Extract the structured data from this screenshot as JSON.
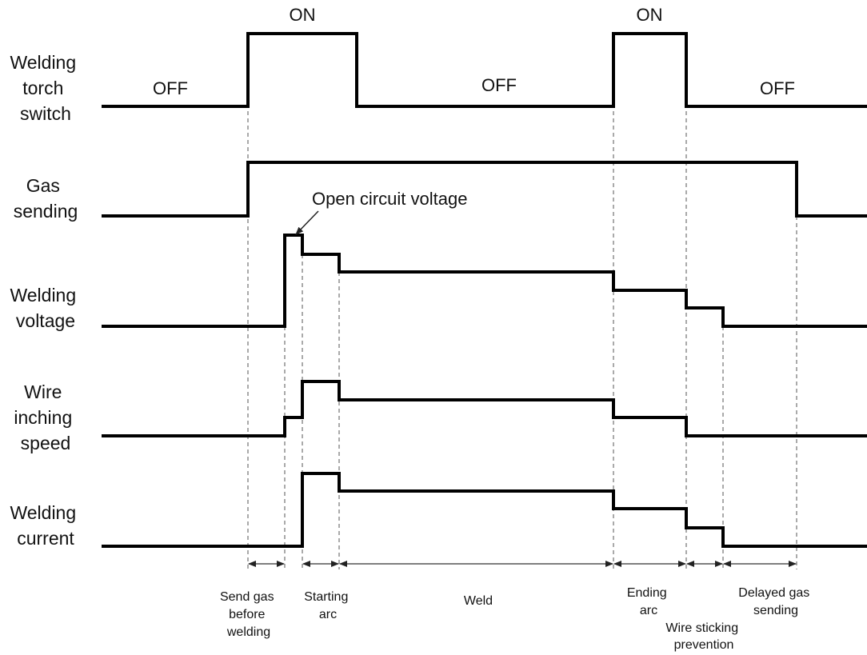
{
  "rows": [
    {
      "id": "torch",
      "label_lines": [
        "Welding",
        "torch",
        "switch"
      ]
    },
    {
      "id": "gas",
      "label_lines": [
        "Gas",
        "sending"
      ]
    },
    {
      "id": "voltage",
      "label_lines": [
        "Welding",
        "voltage"
      ]
    },
    {
      "id": "wire",
      "label_lines": [
        "Wire",
        "inching",
        "speed"
      ]
    },
    {
      "id": "current",
      "label_lines": [
        "Welding",
        "current"
      ]
    }
  ],
  "states": {
    "off_1": "OFF",
    "on_1": "ON",
    "off_2": "OFF",
    "on_2": "ON",
    "off_3": "OFF"
  },
  "annotation": "Open circuit voltage",
  "phases": [
    {
      "id": "send-gas",
      "lines": [
        "Send gas",
        "before",
        "welding"
      ]
    },
    {
      "id": "starting-arc",
      "lines": [
        "Starting",
        "arc"
      ]
    },
    {
      "id": "weld",
      "lines": [
        "Weld"
      ]
    },
    {
      "id": "ending-arc",
      "lines": [
        "Ending",
        "arc"
      ]
    },
    {
      "id": "wire-sticking",
      "lines": [
        "Wire sticking",
        "prevention"
      ]
    },
    {
      "id": "delayed-gas",
      "lines": [
        "Delayed gas",
        "sending"
      ]
    }
  ]
}
